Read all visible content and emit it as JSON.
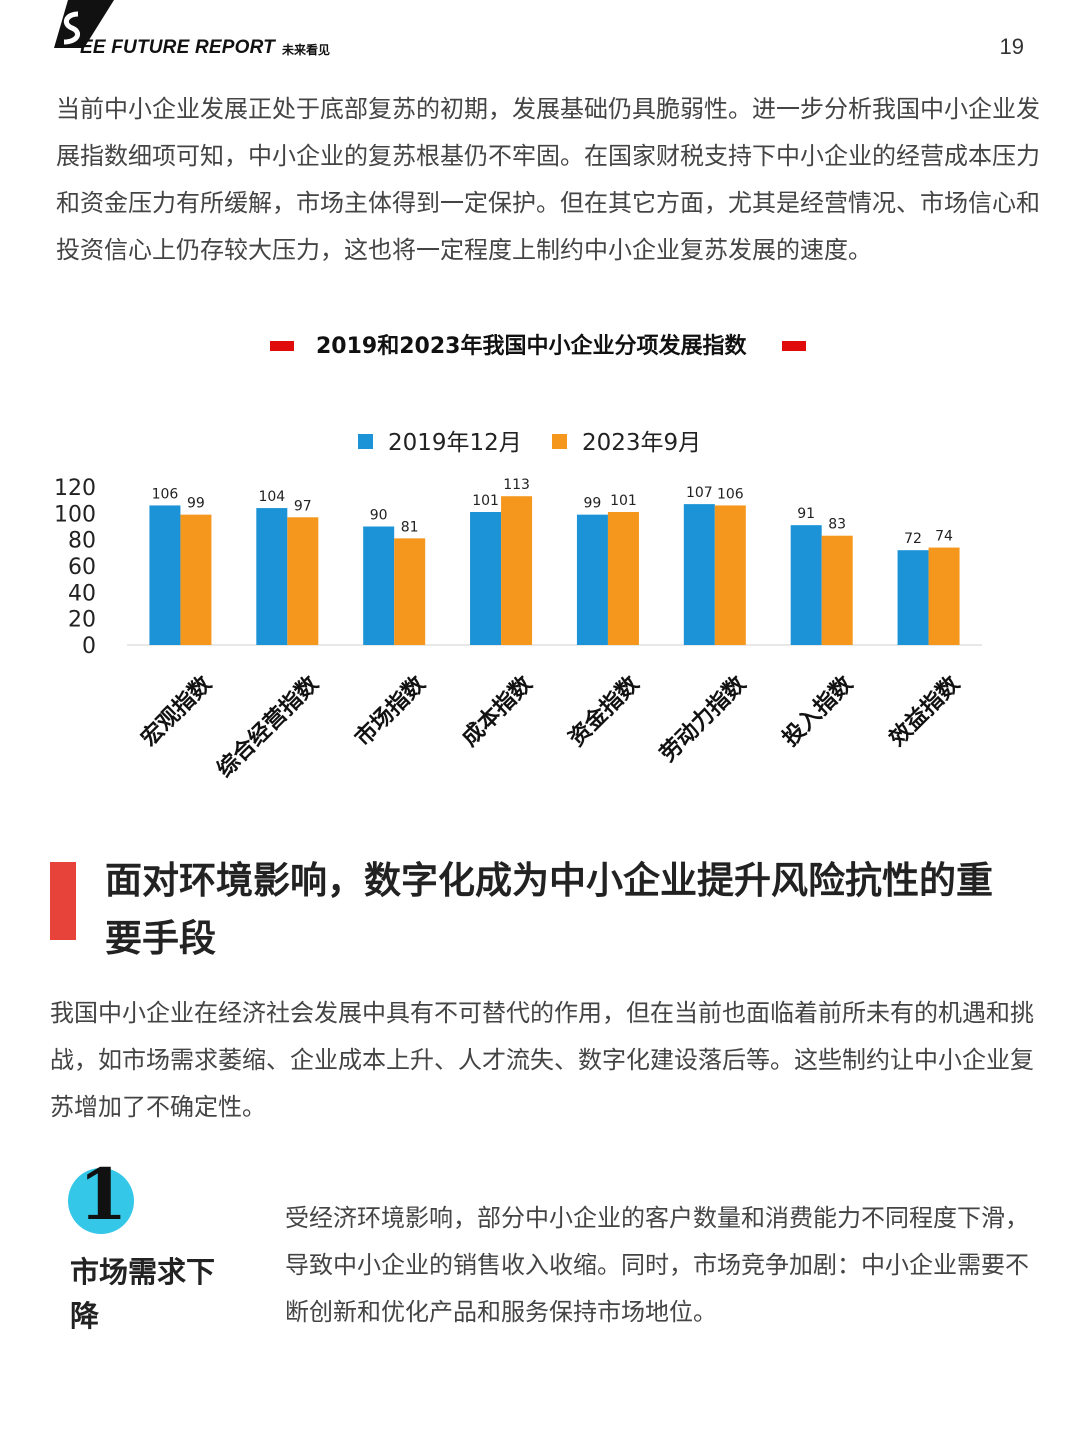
{
  "header": {
    "brand": "EE FUTURE REPORT",
    "brand_cn": "未来看见",
    "page_number": "19"
  },
  "intro_paragraph": "当前中小企业发展正处于底部复苏的初期，发展基础仍具脆弱性。进一步分析我国中小企业发展指数细项可知，中小企业的复苏根基仍不牢固。在国家财税支持下中小企业的经营成本压力和资金压力有所缓解，市场主体得到一定保护。但在其它方面，尤其是经营情况、市场信心和投资信心上仍存较大压力，这也将一定程度上制约中小企业复苏发展的速度。",
  "chart_data": {
    "type": "bar",
    "title": "2019和2023年我国中小企业分项发展指数",
    "categories": [
      "宏观指数",
      "综合经营指数",
      "市场指数",
      "成本指数",
      "资金指数",
      "劳动力指数",
      "投入指数",
      "效益指数"
    ],
    "series": [
      {
        "name": "2019年12月",
        "color": "#1b93d6",
        "values": [
          106,
          104,
          90,
          101,
          99,
          107,
          91,
          72
        ]
      },
      {
        "name": "2023年9月",
        "color": "#f5961d",
        "values": [
          99,
          97,
          81,
          113,
          101,
          106,
          83,
          74
        ]
      }
    ],
    "ylim": [
      0,
      120
    ],
    "yticks": [
      "0",
      "20",
      "40",
      "60",
      "80",
      "100",
      "120"
    ],
    "legend": "top-center",
    "grid": false
  },
  "section": {
    "title": "面对环境影响，数字化成为中小企业提升风险抗性的重要手段",
    "paragraph": "我国中小企业在经济社会发展中具有不可替代的作用，但在当前也面临着前所未有的机遇和挑战，如市场需求萎缩、企业成本上升、人才流失、数字化建设落后等。这些制约让中小企业复苏增加了不确定性。"
  },
  "point1": {
    "number": "1",
    "title": "市场需求下降",
    "text": "受经济环境影响，部分中小企业的客户数量和消费能力不同程度下滑，导致中小企业的销售收入收缩。同时，市场竞争加剧：中小企业需要不断创新和优化产品和服务保持市场地位。"
  }
}
